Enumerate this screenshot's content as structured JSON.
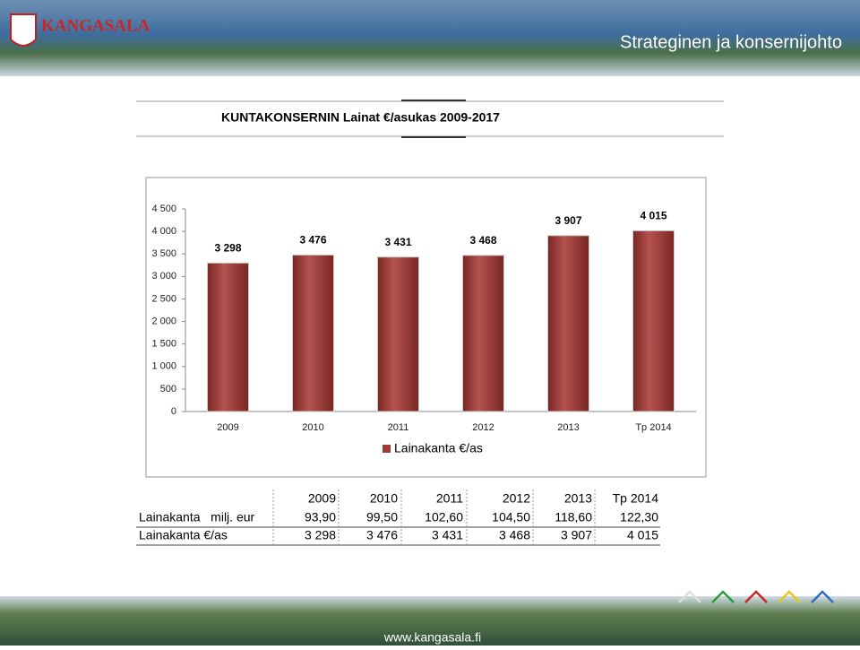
{
  "header": {
    "logo": "KANGASALA",
    "section": "Strateginen ja konsernijohto"
  },
  "chart_data": {
    "type": "bar",
    "title": "KUNTAKONSERNIN Lainat €/asukas 2009-2017",
    "categories": [
      "2009",
      "2010",
      "2011",
      "2012",
      "2013",
      "Tp 2014"
    ],
    "series": [
      {
        "name": "Lainakanta €/as",
        "color": "#9e3a38",
        "values": [
          3298,
          3476,
          3431,
          3468,
          3907,
          4015
        ],
        "value_labels": [
          "3 298",
          "3 476",
          "3 431",
          "3 468",
          "3 907",
          "4 015"
        ]
      }
    ],
    "ylim": [
      0,
      4500
    ],
    "yticks": [
      0,
      500,
      {
        "value": 1000,
        "label": "1 000"
      },
      {
        "value": 1500,
        "label": "1 500"
      },
      {
        "value": 2000,
        "label": "2 000"
      },
      {
        "value": 2500,
        "label": "2 500"
      },
      {
        "value": 3000,
        "label": "3 000"
      },
      {
        "value": 3500,
        "label": "3 500"
      },
      {
        "value": 4000,
        "label": "4 000"
      },
      {
        "value": 4500,
        "label": "4 500"
      }
    ],
    "legend": "bottom"
  },
  "table": {
    "columns": [
      "2009",
      "2010",
      "2011",
      "2012",
      "2013",
      "Tp 2014"
    ],
    "rows": [
      {
        "label": "Lainakanta   milj. eur",
        "cells": [
          "93,90",
          "99,50",
          "102,60",
          "104,50",
          "118,60",
          "122,30"
        ]
      },
      {
        "label": "Lainakanta €/as",
        "cells": [
          "3 298",
          "3 476",
          "3 431",
          "3 468",
          "3 907",
          "4 015"
        ]
      }
    ]
  },
  "footer": {
    "url": "www.kangasala.fi"
  }
}
